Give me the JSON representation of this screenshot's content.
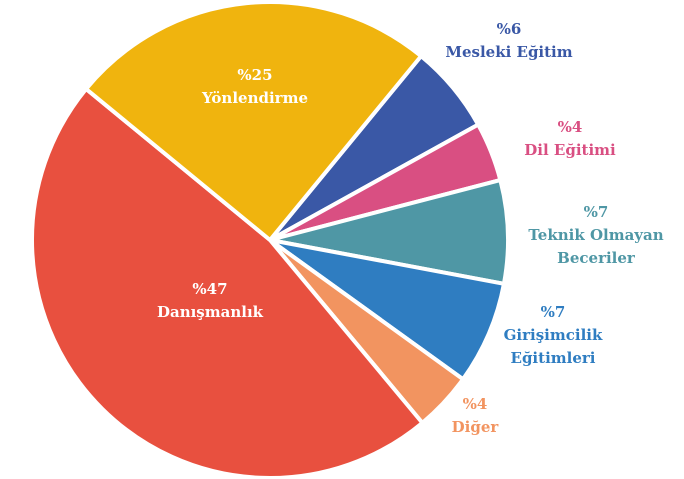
{
  "chart_data": {
    "type": "pie",
    "categories": [
      "Mesleki Eğitim",
      "Dil Eğitimi",
      "Teknik Olmayan Beceriler",
      "Girişimcilik Eğitimleri",
      "Diğer",
      "Danışmanlık",
      "Yönlendirme"
    ],
    "values": [
      6,
      4,
      7,
      7,
      4,
      47,
      25
    ],
    "value_labels": [
      "%6",
      "%4",
      "%7",
      "%7",
      "%4",
      "%47",
      "%25"
    ],
    "colors": [
      "#3a58a6",
      "#d94f82",
      "#4f97a5",
      "#2f7dc1",
      "#f29460",
      "#e8503f",
      "#f0b40e"
    ]
  }
}
